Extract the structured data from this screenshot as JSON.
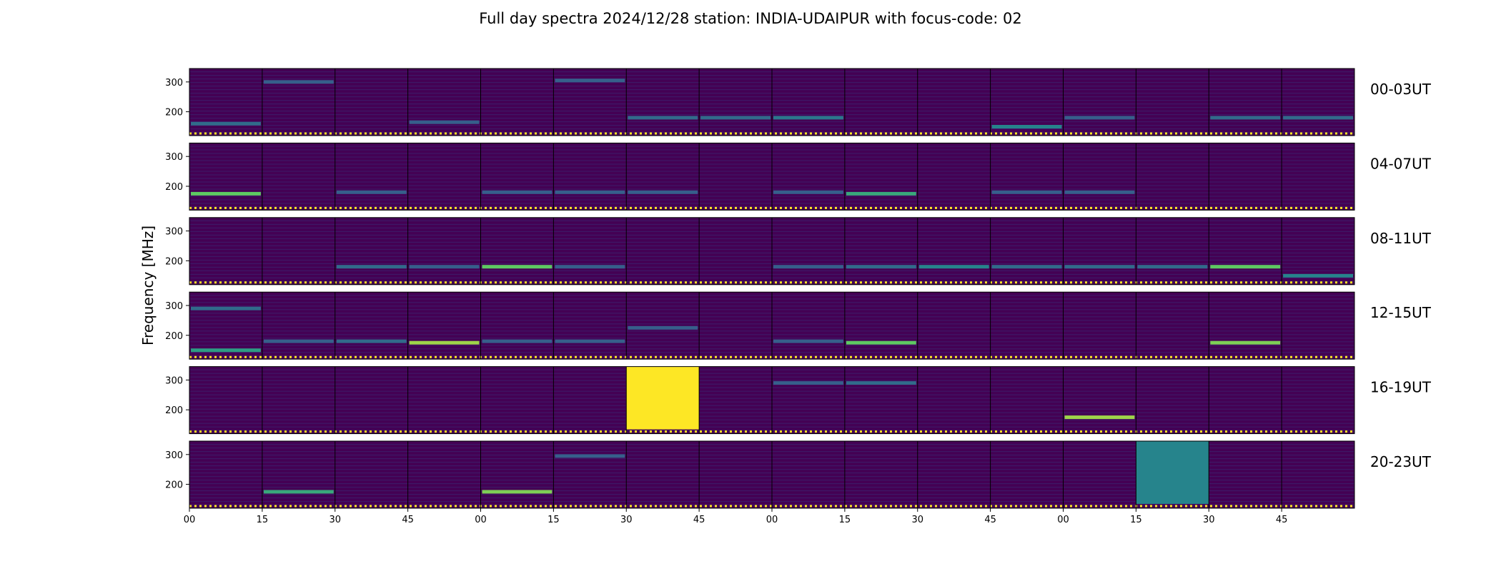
{
  "chart_data": {
    "type": "heatmap",
    "title": "Full day spectra 2024/12/28 station: INDIA-UDAIPUR with focus-code: 02",
    "ylabel": "Frequency [MHz]",
    "xlabel": "",
    "ylim": [
      120,
      345
    ],
    "y_ticks": [
      200,
      300
    ],
    "x_ticks": [
      "00",
      "15",
      "30",
      "45",
      "00",
      "15",
      "30",
      "45",
      "00",
      "15",
      "30",
      "45",
      "00",
      "15",
      "30",
      "45"
    ],
    "colormap": "viridis",
    "colors": {
      "background": "#440154",
      "low": "#46327e",
      "mid": "#21918c",
      "high": "#fde725",
      "frame": "#000000"
    },
    "rows": [
      {
        "label": "00-03UT",
        "events": [
          {
            "seg": 0,
            "f": 160,
            "i": 0.35
          },
          {
            "seg": 1,
            "f": 300,
            "i": 0.3
          },
          {
            "seg": 3,
            "f": 165,
            "i": 0.3
          },
          {
            "seg": 5,
            "f": 305,
            "i": 0.3
          },
          {
            "seg": 6,
            "f": 180,
            "i": 0.35
          },
          {
            "seg": 7,
            "f": 180,
            "i": 0.35
          },
          {
            "seg": 8,
            "f": 180,
            "i": 0.4
          },
          {
            "seg": 11,
            "f": 150,
            "i": 0.45
          },
          {
            "seg": 12,
            "f": 180,
            "i": 0.3
          },
          {
            "seg": 14,
            "f": 180,
            "i": 0.35
          },
          {
            "seg": 15,
            "f": 180,
            "i": 0.35
          }
        ]
      },
      {
        "label": "04-07UT",
        "events": [
          {
            "seg": 0,
            "f": 175,
            "i": 0.75
          },
          {
            "seg": 2,
            "f": 180,
            "i": 0.3
          },
          {
            "seg": 4,
            "f": 180,
            "i": 0.3
          },
          {
            "seg": 5,
            "f": 180,
            "i": 0.3
          },
          {
            "seg": 6,
            "f": 180,
            "i": 0.3
          },
          {
            "seg": 8,
            "f": 180,
            "i": 0.3
          },
          {
            "seg": 9,
            "f": 175,
            "i": 0.6
          },
          {
            "seg": 11,
            "f": 180,
            "i": 0.3
          },
          {
            "seg": 12,
            "f": 180,
            "i": 0.3
          }
        ]
      },
      {
        "label": "08-11UT",
        "events": [
          {
            "seg": 2,
            "f": 180,
            "i": 0.35
          },
          {
            "seg": 3,
            "f": 180,
            "i": 0.3
          },
          {
            "seg": 4,
            "f": 180,
            "i": 0.75
          },
          {
            "seg": 5,
            "f": 180,
            "i": 0.3
          },
          {
            "seg": 8,
            "f": 180,
            "i": 0.3
          },
          {
            "seg": 9,
            "f": 180,
            "i": 0.35
          },
          {
            "seg": 10,
            "f": 180,
            "i": 0.45
          },
          {
            "seg": 11,
            "f": 180,
            "i": 0.35
          },
          {
            "seg": 12,
            "f": 180,
            "i": 0.35
          },
          {
            "seg": 13,
            "f": 180,
            "i": 0.35
          },
          {
            "seg": 14,
            "f": 180,
            "i": 0.75
          },
          {
            "seg": 15,
            "f": 150,
            "i": 0.45
          }
        ]
      },
      {
        "label": "12-15UT",
        "events": [
          {
            "seg": 0,
            "f": 150,
            "i": 0.55
          },
          {
            "seg": 0,
            "f": 290,
            "i": 0.35
          },
          {
            "seg": 1,
            "f": 180,
            "i": 0.3
          },
          {
            "seg": 2,
            "f": 180,
            "i": 0.35
          },
          {
            "seg": 3,
            "f": 175,
            "i": 0.85
          },
          {
            "seg": 4,
            "f": 180,
            "i": 0.3
          },
          {
            "seg": 5,
            "f": 180,
            "i": 0.3
          },
          {
            "seg": 6,
            "f": 225,
            "i": 0.3
          },
          {
            "seg": 8,
            "f": 180,
            "i": 0.3
          },
          {
            "seg": 9,
            "f": 175,
            "i": 0.75
          },
          {
            "seg": 14,
            "f": 175,
            "i": 0.8
          }
        ]
      },
      {
        "label": "16-19UT",
        "events": [
          {
            "seg": 6,
            "f": 230,
            "i": 1.0,
            "full": true
          },
          {
            "seg": 8,
            "f": 290,
            "i": 0.3
          },
          {
            "seg": 9,
            "f": 290,
            "i": 0.35
          },
          {
            "seg": 12,
            "f": 175,
            "i": 0.85
          }
        ]
      },
      {
        "label": "20-23UT",
        "events": [
          {
            "seg": 1,
            "f": 175,
            "i": 0.6
          },
          {
            "seg": 4,
            "f": 175,
            "i": 0.8
          },
          {
            "seg": 5,
            "f": 295,
            "i": 0.3
          },
          {
            "seg": 13,
            "f": 175,
            "i": 0.9
          },
          {
            "seg": 13,
            "f": 230,
            "i": 0.45,
            "full": true
          }
        ]
      }
    ]
  }
}
